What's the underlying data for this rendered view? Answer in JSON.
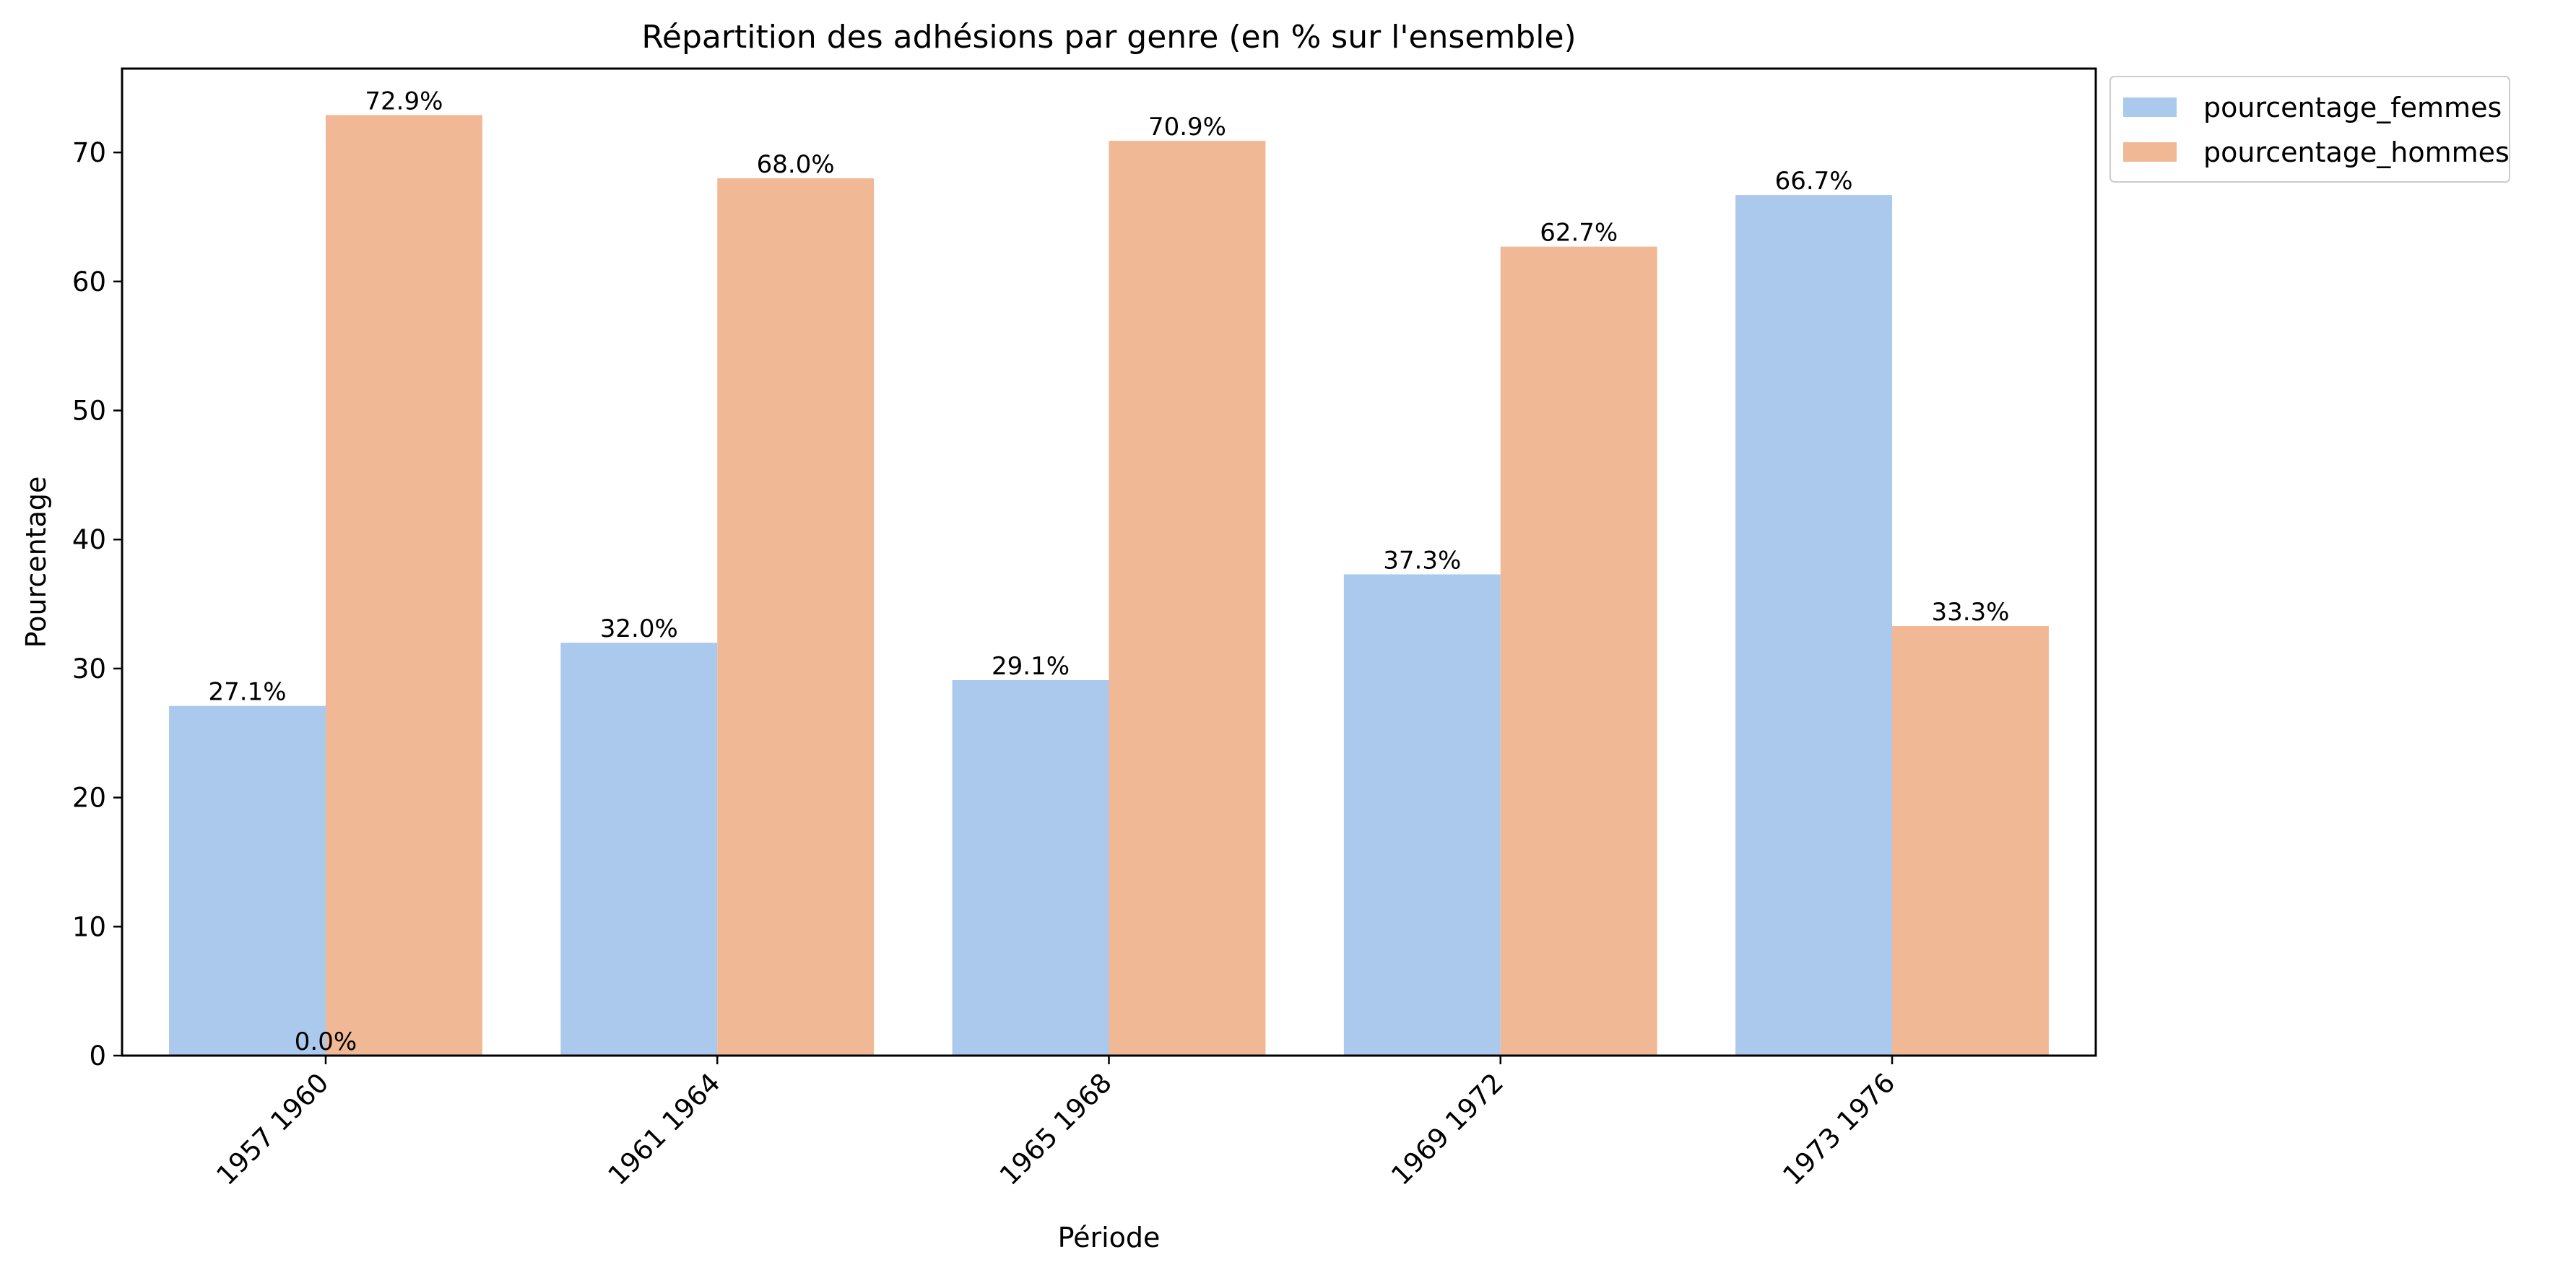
{
  "chart_data": {
    "type": "bar",
    "title": "Répartition des adhésions par genre  (en % sur l'ensemble)",
    "xlabel": "Période",
    "ylabel": "Pourcentage",
    "categories": [
      "1957 1960",
      "1961 1964",
      "1965 1968",
      "1969 1972",
      "1973 1976"
    ],
    "series": [
      {
        "name": "pourcentage_femmes",
        "values": [
          27.1,
          32.0,
          29.1,
          37.3,
          66.7
        ],
        "labels": [
          "27.1%",
          "32.0%",
          "29.1%",
          "37.3%",
          "66.7%"
        ],
        "color": "#abc9ed"
      },
      {
        "name": "pourcentage_hommes",
        "values": [
          72.9,
          68.0,
          70.9,
          62.7,
          33.3
        ],
        "labels": [
          "72.9%",
          "68.0%",
          "70.9%",
          "62.7%",
          "33.3%"
        ],
        "color": "#f0b894"
      }
    ],
    "extra_labels": [
      {
        "text": "0.0%",
        "category": "1957 1960",
        "value": 0
      }
    ],
    "ylim": [
      0,
      76.5
    ],
    "yticks": [
      0,
      10,
      20,
      30,
      40,
      50,
      60,
      70
    ],
    "legend": {
      "position": "outside-top-right"
    },
    "grid": false,
    "tick_rotation": -45
  }
}
